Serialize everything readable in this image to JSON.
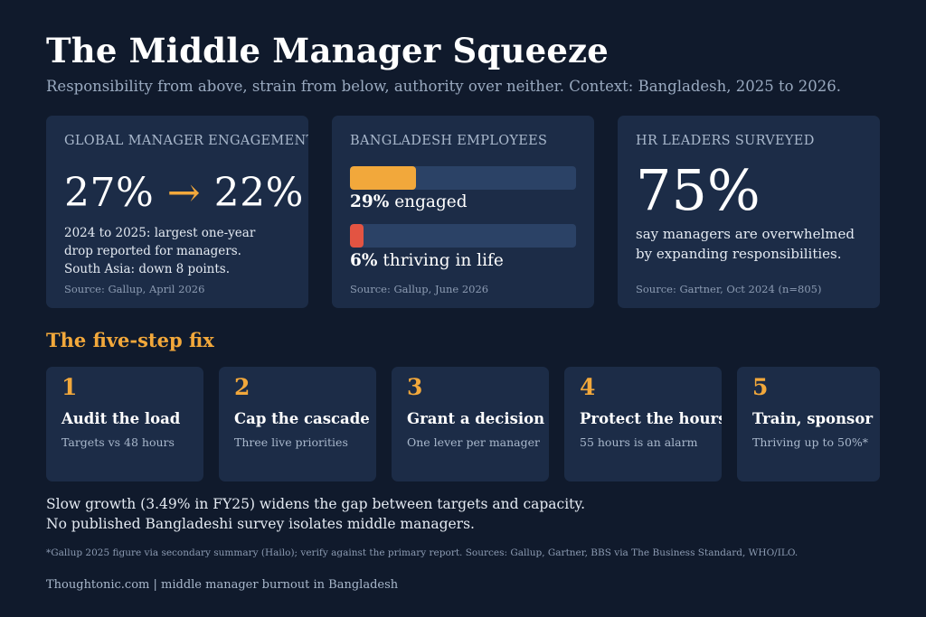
{
  "header": {
    "title": "The Middle Manager Squeeze",
    "subtitle": "Responsibility from above, strain from below, authority over neither. Context: Bangladesh, 2025 to 2026."
  },
  "cards": {
    "global": {
      "label": "GLOBAL MANAGER ENGAGEMENT",
      "stat_from": "27%",
      "arrow": "→",
      "stat_to": "22%",
      "desc_line_1": "2024 to 2025: largest one-year",
      "desc_line_2": "drop reported for managers.",
      "desc_line_3": "South Asia: down 8 points.",
      "source": "Source: Gallup, April 2026"
    },
    "bangladesh": {
      "label": "BANGLADESH EMPLOYEES",
      "engaged": {
        "value": "29%",
        "text": "engaged",
        "fraction": 0.29
      },
      "thriving": {
        "value": "6%",
        "text": "thriving in life",
        "fraction": 0.06
      },
      "source": "Source: Gallup, June 2026"
    },
    "hr": {
      "label": "HR LEADERS SURVEYED",
      "stat": "75%",
      "desc_line_1": "say managers are overwhelmed",
      "desc_line_2": "by expanding responsibilities.",
      "source": "Source: Gartner, Oct 2024 (n=805)"
    }
  },
  "steps": {
    "heading": "The five-step fix",
    "items": [
      {
        "num": "1",
        "title": "Audit the load",
        "sub": "Targets vs 48 hours"
      },
      {
        "num": "2",
        "title": "Cap the cascade",
        "sub": "Three live priorities"
      },
      {
        "num": "3",
        "title": "Grant a decision",
        "sub": "One lever per manager"
      },
      {
        "num": "4",
        "title": "Protect the hours",
        "sub": "55 hours is an alarm"
      },
      {
        "num": "5",
        "title": "Train, sponsor",
        "sub": "Thriving up to 50%*"
      }
    ]
  },
  "body": {
    "line_1": "Slow growth (3.49% in FY25) widens the gap between targets and capacity.",
    "line_2": "No published Bangladeshi survey isolates middle managers."
  },
  "footnote": "*Gallup 2025 figure via secondary summary (Hailo); verify against the primary report. Sources: Gallup, Gartner, BBS via The Business Standard, WHO/ILO.",
  "footer": "Thoughtonic.com | middle manager burnout in Bangladesh",
  "colors": {
    "background": "#101a2c",
    "card": "#1c2c47",
    "accent": "#f2a83b",
    "alert": "#e35442",
    "bar_track": "#2b4266"
  }
}
